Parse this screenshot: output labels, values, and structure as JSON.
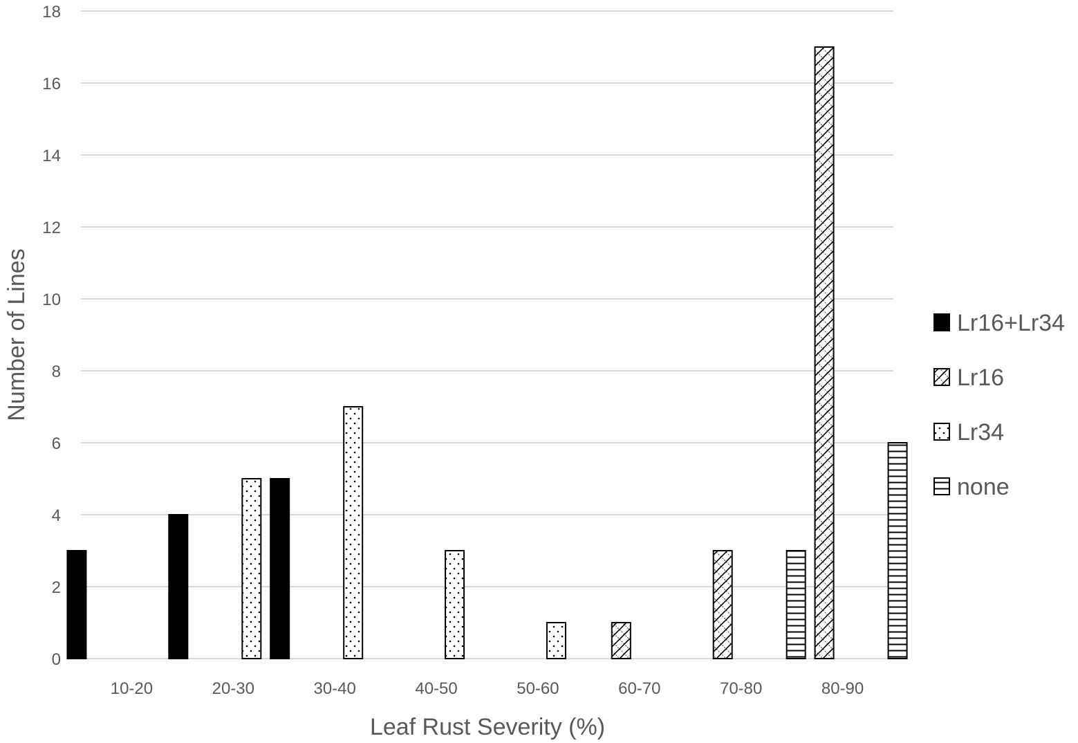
{
  "chart_data": {
    "type": "bar",
    "title": "",
    "xlabel": "Leaf Rust Severity (%)",
    "ylabel": "Number of Lines",
    "ylim": [
      0,
      18
    ],
    "yticks": [
      0,
      2,
      4,
      6,
      8,
      10,
      12,
      14,
      16,
      18
    ],
    "grid": true,
    "legend_position": "right",
    "categories": [
      "10-20",
      "20-30",
      "30-40",
      "40-50",
      "50-60",
      "60-70",
      "70-80",
      "80-90"
    ],
    "series": [
      {
        "name": "Lr16+Lr34",
        "pattern": "solid",
        "values": [
          3,
          4,
          5,
          0,
          0,
          0,
          0,
          0
        ]
      },
      {
        "name": "Lr16",
        "pattern": "crosshatch",
        "values": [
          0,
          0,
          0,
          0,
          0,
          1,
          3,
          17
        ]
      },
      {
        "name": "Lr34",
        "pattern": "dots",
        "values": [
          0,
          5,
          7,
          3,
          1,
          0,
          0,
          0
        ]
      },
      {
        "name": "none",
        "pattern": "horizontal-lines",
        "values": [
          0,
          0,
          0,
          0,
          0,
          0,
          3,
          6
        ]
      }
    ],
    "colors": {
      "bar_fill": "#000000",
      "bar_stroke": "#000000",
      "grid": "#d9d9d9",
      "text": "#595959"
    }
  }
}
